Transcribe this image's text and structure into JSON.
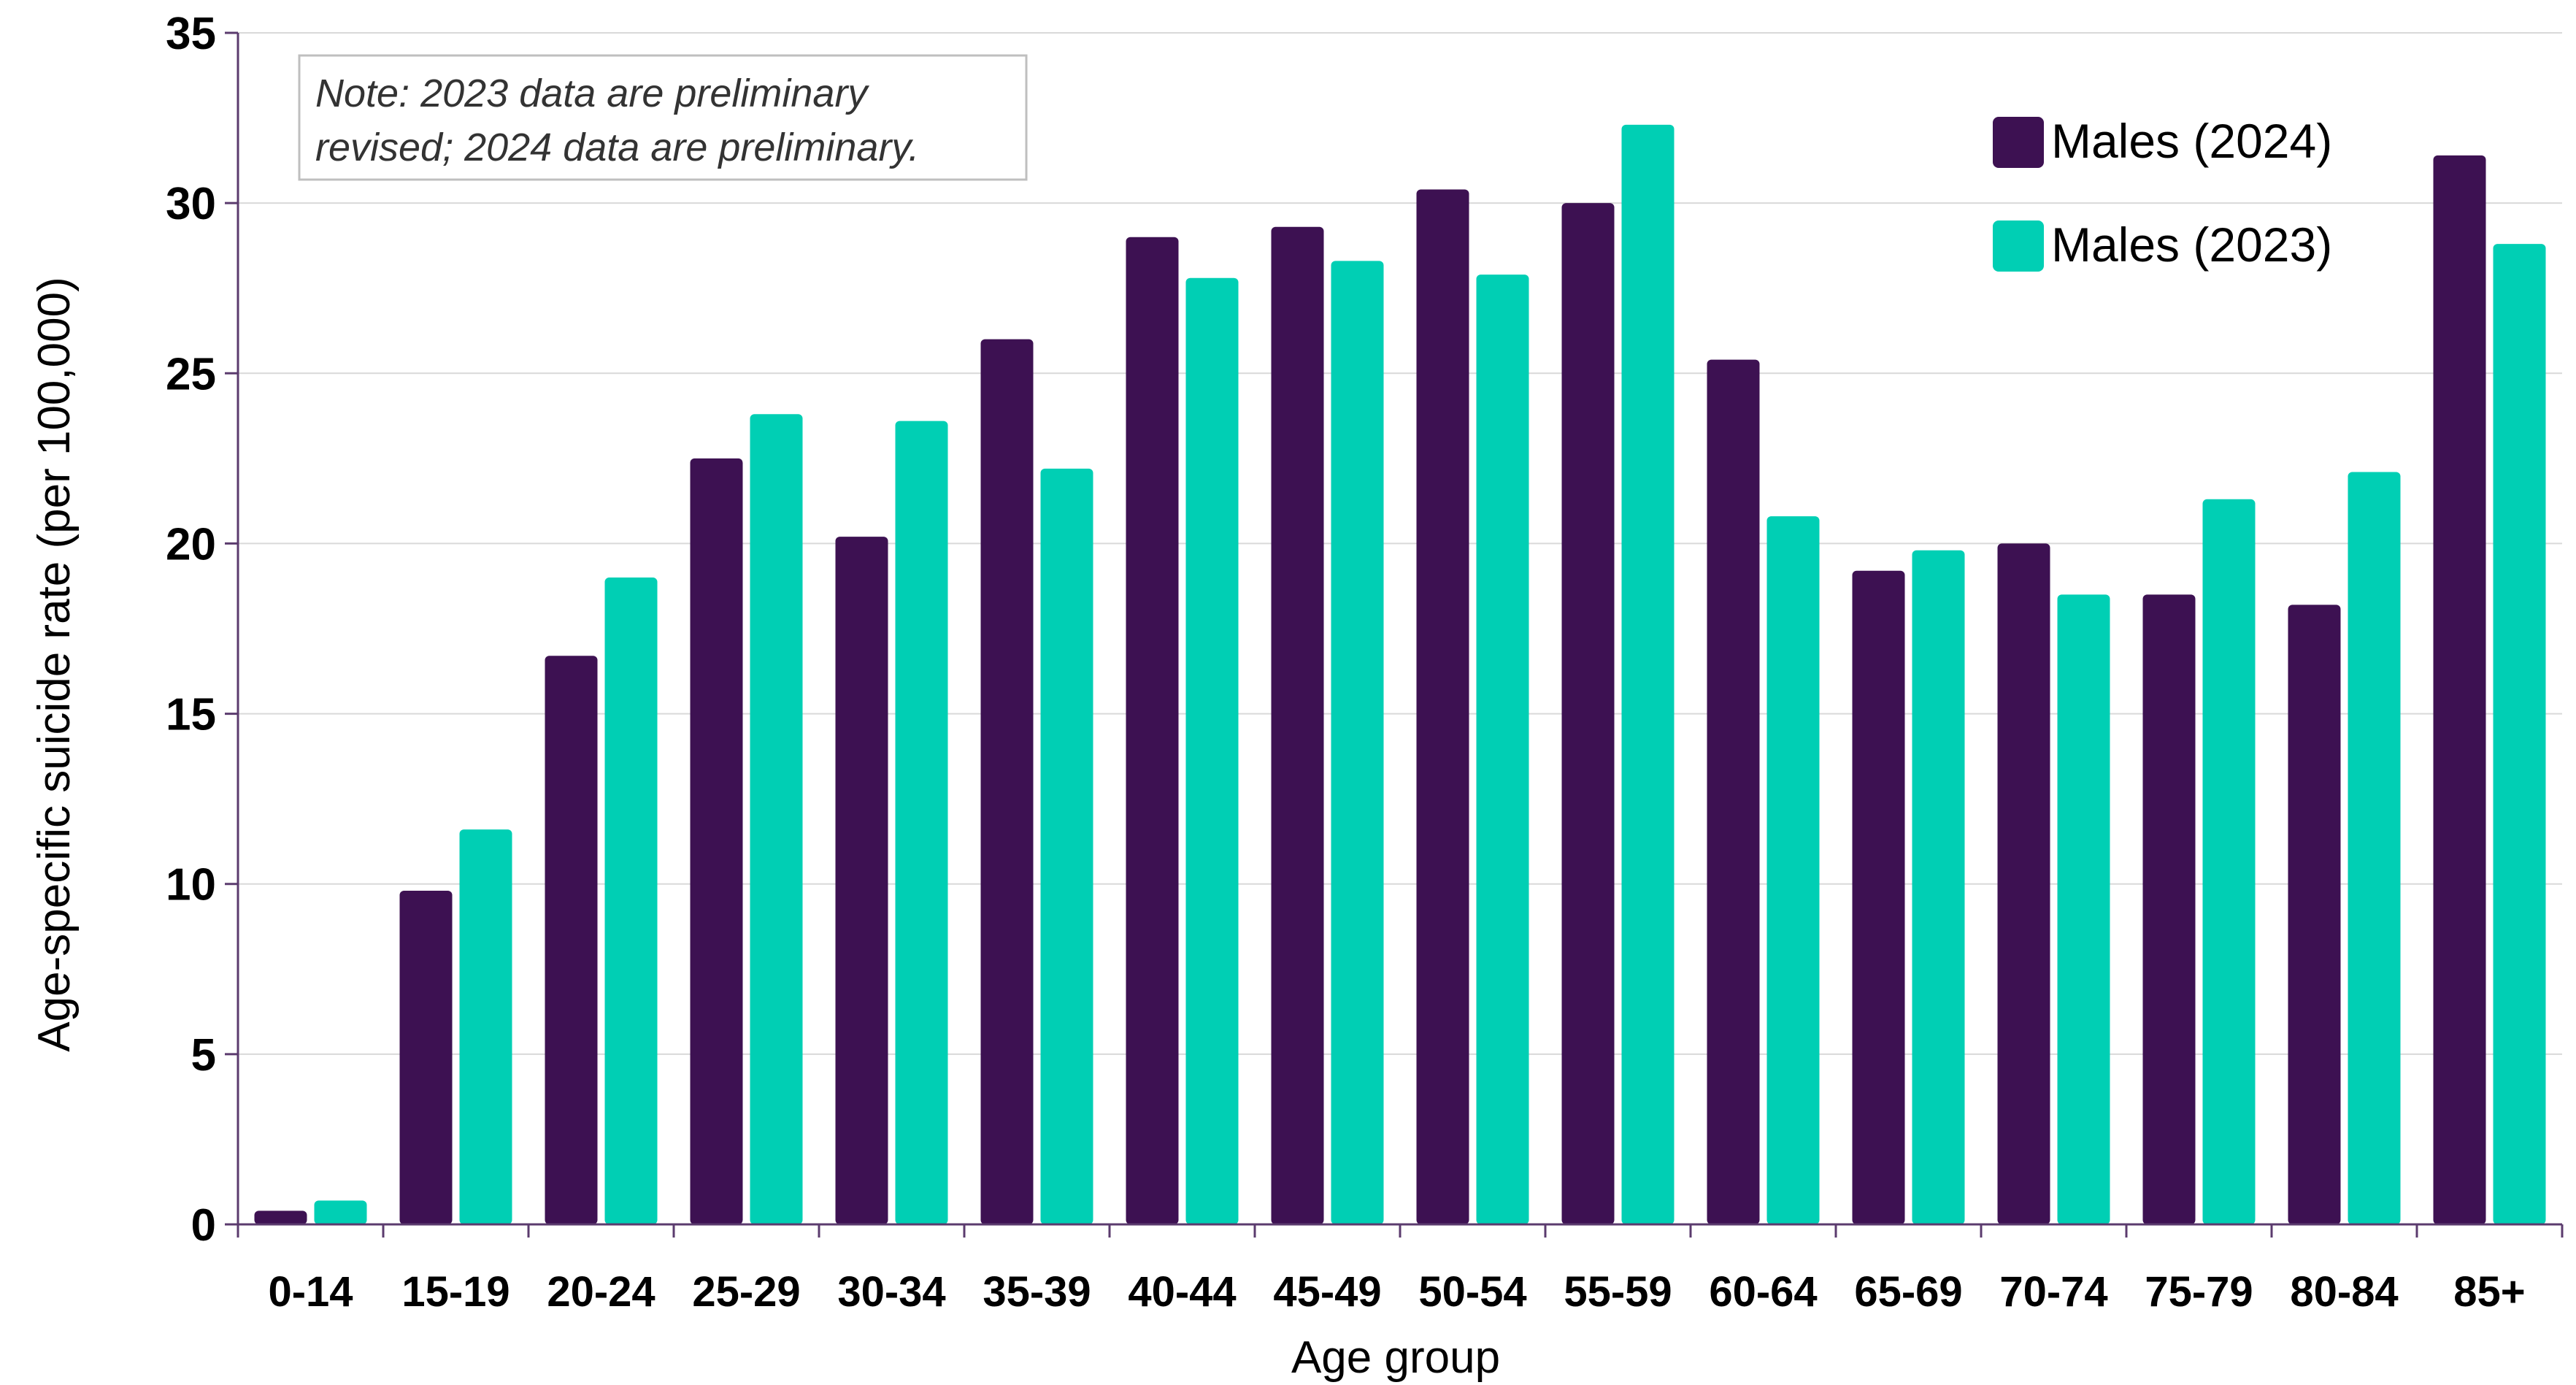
{
  "chart_data": {
    "type": "bar",
    "xlabel": "Age group",
    "ylabel": "Age-specific suicide rate (per 100,000)",
    "ylim": [
      0,
      35
    ],
    "yticks": [
      0,
      5,
      10,
      15,
      20,
      25,
      30,
      35
    ],
    "grid": true,
    "legend_position": "top-right",
    "categories": [
      "0-14",
      "15-19",
      "20-24",
      "25-29",
      "30-34",
      "35-39",
      "40-44",
      "45-49",
      "50-54",
      "55-59",
      "60-64",
      "65-69",
      "70-74",
      "75-79",
      "80-84",
      "85+"
    ],
    "series": [
      {
        "name": "Males (2024)",
        "color": "#3d1152",
        "values": [
          0.4,
          9.8,
          16.7,
          22.5,
          20.2,
          26.0,
          29.0,
          29.3,
          30.4,
          30.0,
          25.4,
          19.2,
          20.0,
          18.5,
          18.2,
          31.4
        ]
      },
      {
        "name": "Males (2023)",
        "color": "#00cfb4",
        "values": [
          0.7,
          11.6,
          19.0,
          23.8,
          23.6,
          22.2,
          27.8,
          28.3,
          27.9,
          32.3,
          20.8,
          19.8,
          18.5,
          21.3,
          22.1,
          28.8
        ]
      }
    ],
    "annotation": "Note: 2023 data are preliminary revised; 2024 data are preliminary.",
    "annotation_lines": [
      "Note: 2023 data are preliminary",
      "revised; 2024 data are preliminary."
    ]
  }
}
